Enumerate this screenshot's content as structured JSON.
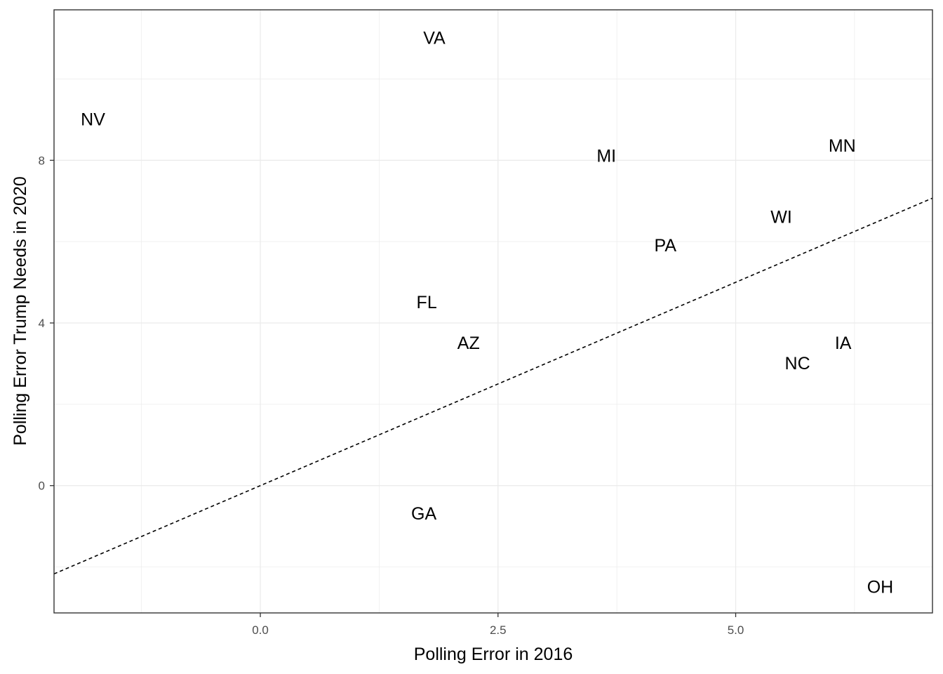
{
  "chart_data": {
    "type": "scatter",
    "title": "",
    "xlabel": "Polling Error in 2016",
    "ylabel": "Polling Error Trump Needs in 2020",
    "xlim": [
      -2.17,
      7.07
    ],
    "ylim": [
      -3.13,
      11.7
    ],
    "x_ticks": [
      0,
      2.5,
      5
    ],
    "x_tick_labels": [
      "0.0",
      "2.5",
      "5.0"
    ],
    "y_ticks": [
      0,
      4,
      8
    ],
    "y_tick_labels": [
      "0",
      "4",
      "8"
    ],
    "grid": true,
    "points": [
      {
        "label": "VA",
        "x": 1.83,
        "y": 11.0
      },
      {
        "label": "NV",
        "x": -1.76,
        "y": 9.0
      },
      {
        "label": "MI",
        "x": 3.64,
        "y": 8.1
      },
      {
        "label": "MN",
        "x": 6.12,
        "y": 8.35
      },
      {
        "label": "WI",
        "x": 5.48,
        "y": 6.6
      },
      {
        "label": "PA",
        "x": 4.26,
        "y": 5.9
      },
      {
        "label": "FL",
        "x": 1.75,
        "y": 4.5
      },
      {
        "label": "AZ",
        "x": 2.19,
        "y": 3.5
      },
      {
        "label": "IA",
        "x": 6.13,
        "y": 3.5
      },
      {
        "label": "NC",
        "x": 5.65,
        "y": 3.0
      },
      {
        "label": "GA",
        "x": 1.72,
        "y": -0.7
      },
      {
        "label": "OH",
        "x": 6.52,
        "y": -2.5
      }
    ],
    "reference_line": {
      "style": "dashed",
      "color": "#000000"
    }
  }
}
